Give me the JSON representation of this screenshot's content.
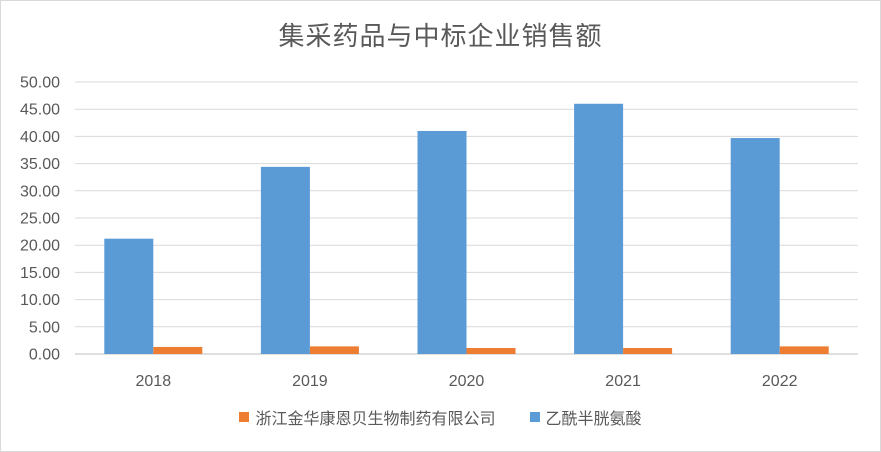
{
  "chart_data": {
    "type": "bar",
    "title": "集采药品与中标企业销售额",
    "categories": [
      "2018",
      "2019",
      "2020",
      "2021",
      "2022"
    ],
    "ylim": [
      0,
      50
    ],
    "yticks": [
      "0.00",
      "5.00",
      "10.00",
      "15.00",
      "20.00",
      "25.00",
      "30.00",
      "35.00",
      "40.00",
      "45.00",
      "50.00"
    ],
    "grid": true,
    "legend_position": "bottom",
    "series": [
      {
        "name": "浙江金华康恩贝生物制药有限公司",
        "color": "#ed7d31",
        "values": [
          1.3,
          1.4,
          1.1,
          1.1,
          1.4
        ]
      },
      {
        "name": "乙酰半胱氨酸",
        "color": "#5b9bd5",
        "values": [
          21.2,
          34.4,
          41.0,
          46.0,
          39.7
        ]
      }
    ]
  }
}
